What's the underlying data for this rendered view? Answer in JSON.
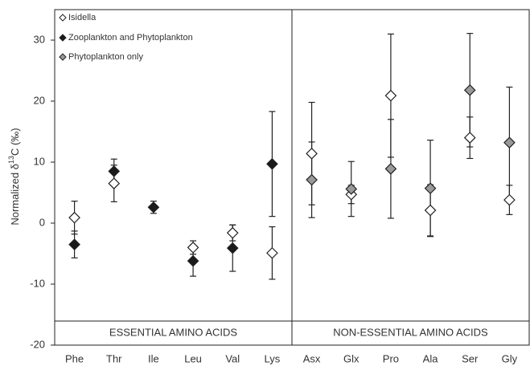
{
  "chart_data": {
    "type": "errorbar-scatter",
    "y_label": {
      "prefix": "Normalized δ",
      "superscript": "13",
      "suffix": "C (‰)"
    },
    "categories": [
      "Phe",
      "Thr",
      "Ile",
      "Leu",
      "Val",
      "Lys",
      "Asx",
      "Glx",
      "Pro",
      "Ala",
      "Ser",
      "Gly"
    ],
    "groups": [
      "ESSENTIAL AMINO ACIDS",
      "NON-ESSENTIAL AMINO ACIDS"
    ],
    "series": [
      {
        "name": "Isidella",
        "color": "#ffffff",
        "values": [
          0.9,
          6.5,
          null,
          -4.0,
          -1.6,
          -4.9,
          11.4,
          4.7,
          20.9,
          2.1,
          14.0,
          3.8
        ],
        "errors": [
          2.7,
          3.0,
          null,
          1.1,
          1.3,
          4.3,
          8.4,
          1.5,
          10.1,
          4.2,
          3.4,
          2.4
        ]
      },
      {
        "name": "Zooplankton and Phytoplankton",
        "color": "#1a1a1a",
        "values": [
          -3.5,
          8.5,
          2.6,
          -6.2,
          -4.1,
          9.7,
          null,
          null,
          null,
          null,
          null,
          null
        ],
        "errors": [
          2.2,
          2.0,
          1.0,
          2.5,
          3.8,
          8.6,
          null,
          null,
          null,
          null,
          null,
          null
        ]
      },
      {
        "name": "Phytoplankton only",
        "color": "#999999",
        "values": [
          null,
          null,
          null,
          null,
          null,
          null,
          7.1,
          5.6,
          8.9,
          5.7,
          21.8,
          13.2
        ],
        "errors": [
          null,
          null,
          null,
          null,
          null,
          null,
          6.2,
          4.5,
          8.1,
          7.9,
          9.3,
          9.1
        ]
      }
    ],
    "ylim": [
      -20,
      35
    ],
    "yticks": [
      -20,
      -10,
      0,
      10,
      20,
      30
    ]
  }
}
